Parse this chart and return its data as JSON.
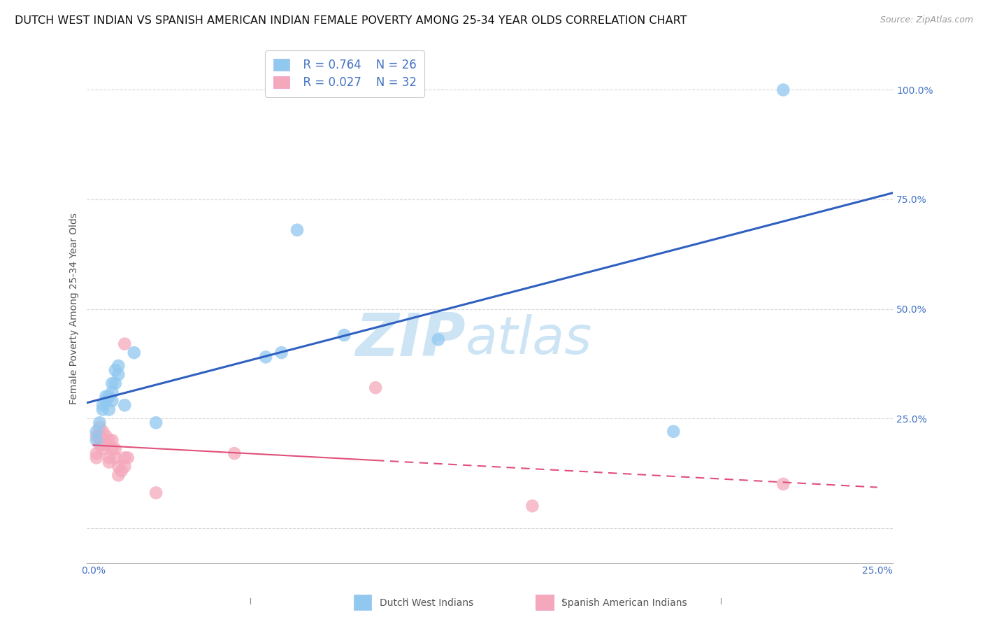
{
  "title": "DUTCH WEST INDIAN VS SPANISH AMERICAN INDIAN FEMALE POVERTY AMONG 25-34 YEAR OLDS CORRELATION CHART",
  "source": "Source: ZipAtlas.com",
  "ylabel": "Female Poverty Among 25-34 Year Olds",
  "xlim": [
    -0.002,
    0.255
  ],
  "ylim": [
    -0.08,
    1.08
  ],
  "x_ticks": [
    0.0,
    0.05,
    0.1,
    0.15,
    0.2,
    0.25
  ],
  "x_tick_labels": [
    "0.0%",
    "",
    "",
    "",
    "",
    "25.0%"
  ],
  "y_ticks": [
    0.0,
    0.25,
    0.5,
    0.75,
    1.0
  ],
  "y_tick_labels": [
    "",
    "25.0%",
    "50.0%",
    "75.0%",
    "100.0%"
  ],
  "background_color": "#ffffff",
  "grid_color": "#d8d8d8",
  "watermark_zip": "ZIP",
  "watermark_atlas": "atlas",
  "watermark_color": "#cde4f5",
  "blue_label": "Dutch West Indians",
  "pink_label": "Spanish American Indians",
  "blue_R": "R = 0.764",
  "blue_N": "N = 26",
  "pink_R": "R = 0.027",
  "pink_N": "N = 32",
  "blue_color": "#90c8f0",
  "pink_color": "#f5a8bc",
  "blue_line_color": "#3060c0",
  "pink_line_color": "#e0507a",
  "blue_x": [
    0.001,
    0.001,
    0.002,
    0.003,
    0.003,
    0.004,
    0.004,
    0.005,
    0.005,
    0.006,
    0.006,
    0.006,
    0.007,
    0.007,
    0.008,
    0.008,
    0.01,
    0.013,
    0.02,
    0.055,
    0.06,
    0.065,
    0.08,
    0.11,
    0.185,
    0.22
  ],
  "blue_y": [
    0.2,
    0.22,
    0.24,
    0.27,
    0.28,
    0.29,
    0.3,
    0.27,
    0.3,
    0.29,
    0.31,
    0.33,
    0.33,
    0.36,
    0.35,
    0.37,
    0.28,
    0.4,
    0.24,
    0.39,
    0.4,
    0.68,
    0.44,
    0.43,
    0.22,
    1.0
  ],
  "pink_x": [
    0.001,
    0.001,
    0.001,
    0.002,
    0.002,
    0.002,
    0.002,
    0.003,
    0.003,
    0.003,
    0.003,
    0.004,
    0.004,
    0.005,
    0.005,
    0.005,
    0.006,
    0.006,
    0.007,
    0.007,
    0.008,
    0.008,
    0.009,
    0.01,
    0.01,
    0.01,
    0.011,
    0.02,
    0.045,
    0.09,
    0.14,
    0.22
  ],
  "pink_y": [
    0.16,
    0.17,
    0.21,
    0.19,
    0.2,
    0.21,
    0.23,
    0.18,
    0.2,
    0.2,
    0.22,
    0.19,
    0.21,
    0.15,
    0.16,
    0.2,
    0.18,
    0.2,
    0.16,
    0.18,
    0.12,
    0.14,
    0.13,
    0.14,
    0.16,
    0.42,
    0.16,
    0.08,
    0.17,
    0.32,
    0.05,
    0.1
  ],
  "title_fontsize": 11.5,
  "axis_label_fontsize": 10,
  "tick_fontsize": 10,
  "legend_fontsize": 12,
  "source_fontsize": 9
}
